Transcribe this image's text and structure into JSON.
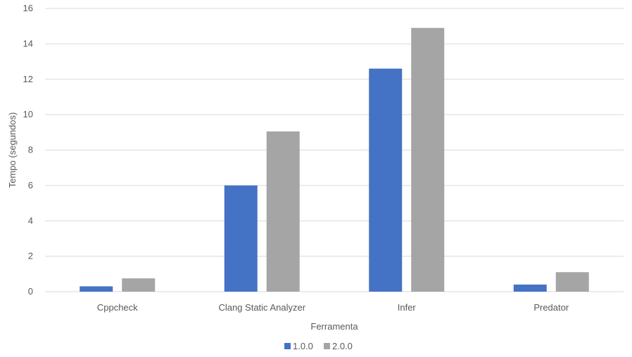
{
  "chart_data": {
    "type": "bar",
    "title": "",
    "xlabel": "Ferramenta",
    "ylabel": "Tempo (segundos)",
    "categories": [
      "Cppcheck",
      "Clang Static Analyzer",
      "Infer",
      "Predator"
    ],
    "series": [
      {
        "name": "1.0.0",
        "values": [
          0.3,
          6.0,
          12.6,
          0.4
        ],
        "color": "#4472c4"
      },
      {
        "name": "2.0.0",
        "values": [
          0.75,
          9.05,
          14.9,
          1.1
        ],
        "color": "#a5a5a5"
      }
    ],
    "ylim": [
      0,
      16
    ],
    "yticks": [
      0,
      2,
      4,
      6,
      8,
      10,
      12,
      14,
      16
    ],
    "grid": true,
    "legend_position": "bottom"
  }
}
